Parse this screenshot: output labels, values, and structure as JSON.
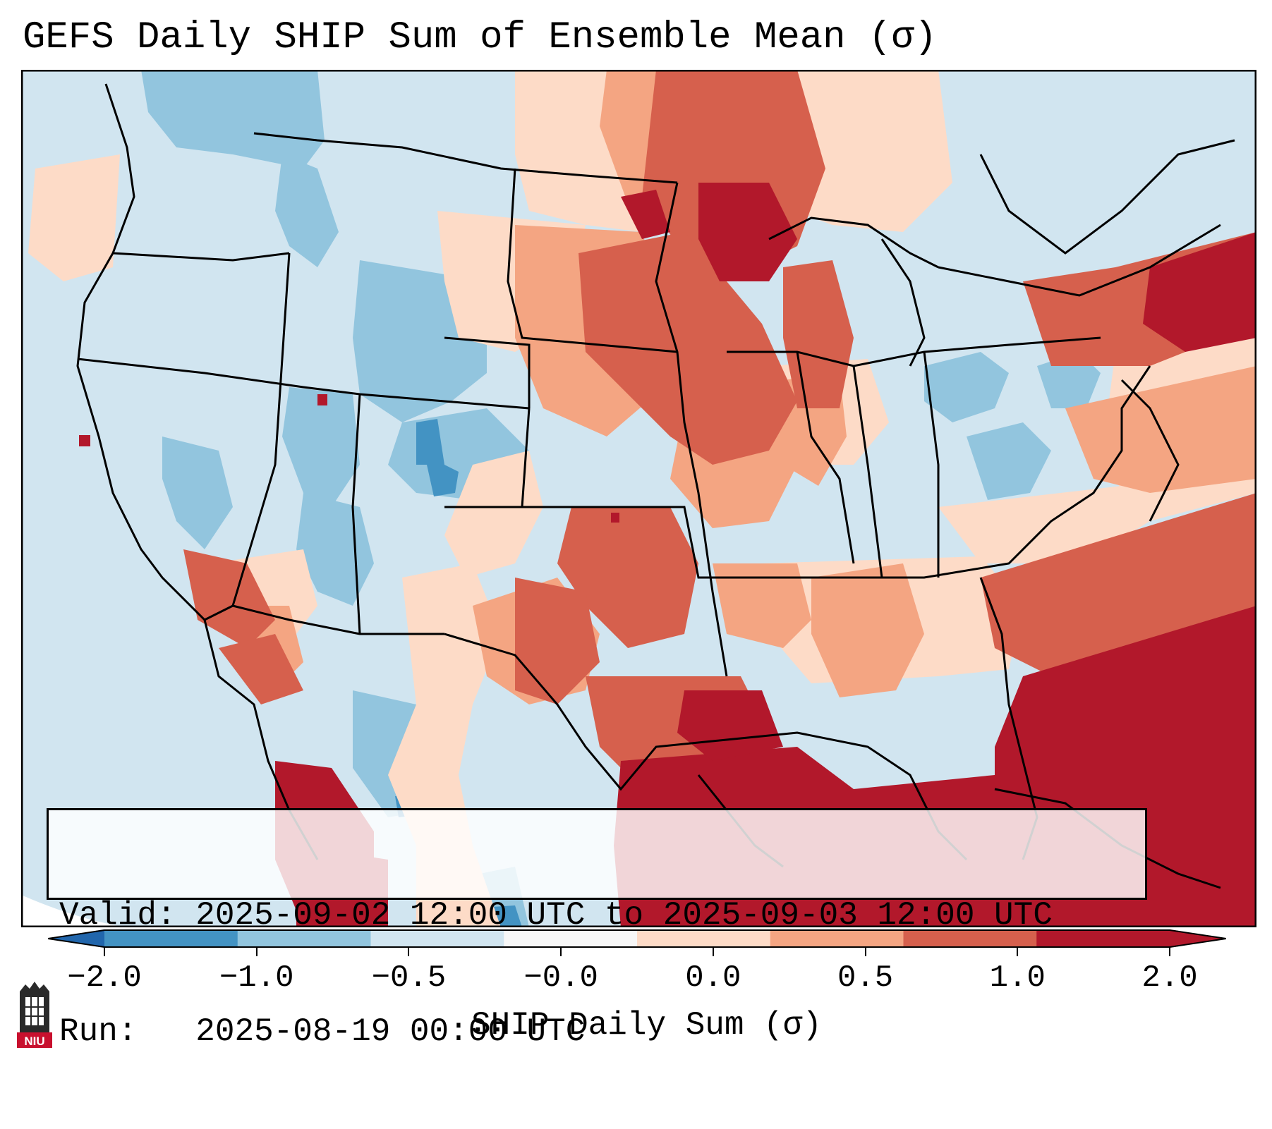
{
  "title": "GEFS Daily SHIP Sum of Ensemble Mean (σ)",
  "info": {
    "valid_label": "Valid:",
    "valid_value": "2025-09-02 12:00 UTC to 2025-09-03 12:00 UTC",
    "run_label": "Run:",
    "run_value": "2025-08-19 00:00 UTC"
  },
  "colorbar": {
    "label": "SHIP Daily Sum (σ)",
    "ticks": [
      "−2.0",
      "−1.0",
      "−0.5",
      "−0.0",
      "0.0",
      "0.5",
      "1.0",
      "2.0"
    ],
    "colors": [
      "#4393c3",
      "#92c5de",
      "#d1e5f0",
      "#f7f7f7",
      "#fddbc7",
      "#f4a582",
      "#d6604d",
      "#b2182b"
    ],
    "under_color": "#2166ac",
    "over_color": "#b2182b"
  },
  "logo": {
    "text": "NIU"
  },
  "map": {
    "background_color": "#d1e5f0",
    "region": "Contiguous United States"
  }
}
